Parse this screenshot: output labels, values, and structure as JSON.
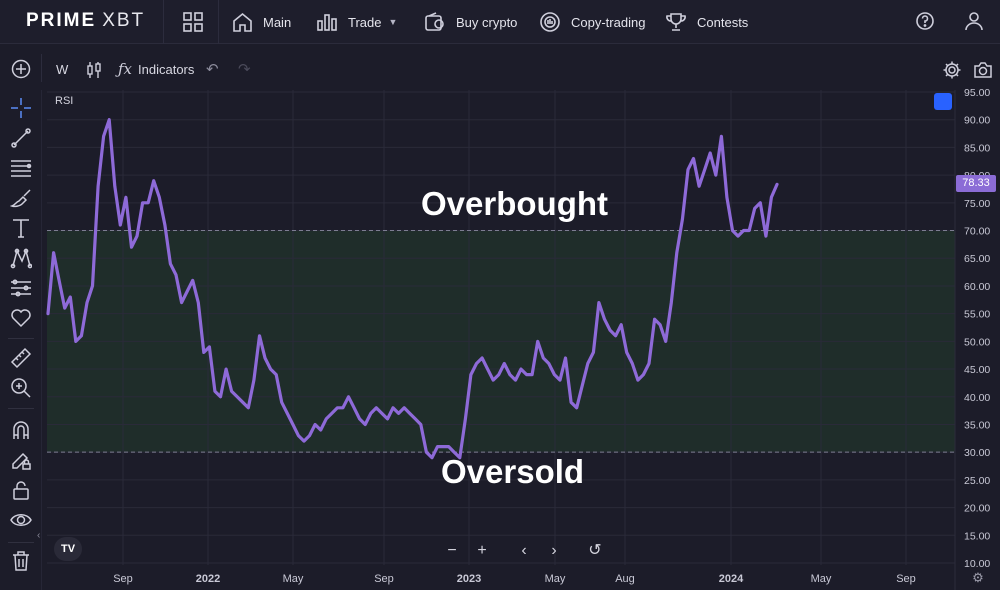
{
  "header": {
    "logo_bold": "PRIME",
    "logo_light": "XBT",
    "nav": [
      {
        "label": "Main",
        "icon": "home-icon"
      },
      {
        "label": "Trade",
        "icon": "bar-chart-icon"
      },
      {
        "label": "Buy crypto",
        "icon": "wallet-icon"
      },
      {
        "label": "Copy-trading",
        "icon": "copy-trading-icon"
      },
      {
        "label": "Contests",
        "icon": "trophy-icon"
      }
    ],
    "right_icons": [
      "help-icon",
      "user-icon"
    ]
  },
  "toolbar": {
    "interval": "W",
    "indicators_label": "Indicators"
  },
  "sidebar_tools": [
    "crosshair-icon",
    "trend-line-icon",
    "fib-icon",
    "brush-icon",
    "text-icon",
    "pattern-icon",
    "forecast-icon",
    "heart-icon",
    "ruler-icon",
    "zoom-in-icon",
    "magnet-icon",
    "lock-drawing-icon",
    "lock-icon",
    "eye-icon",
    "trash-icon"
  ],
  "chart": {
    "indicator_label": "RSI",
    "annotation_overbought": "Overbought",
    "annotation_oversold": "Oversold",
    "current_value_label": "78.33"
  },
  "chart_data": {
    "type": "line",
    "ylim": [
      10,
      95
    ],
    "y_ticks": [
      "95.00",
      "90.00",
      "85.00",
      "80.00",
      "75.00",
      "70.00",
      "65.00",
      "60.00",
      "55.00",
      "50.00",
      "45.00",
      "40.00",
      "35.00",
      "30.00",
      "25.00",
      "20.00",
      "15.00",
      "10.00"
    ],
    "x_ticks": [
      "Sep",
      "2022",
      "May",
      "Sep",
      "2023",
      "May",
      "Aug",
      "2024",
      "May",
      "Sep"
    ],
    "bands": {
      "upper": 70,
      "lower": 30
    },
    "current_value": 78.33,
    "series": [
      {
        "color": "#8e6ad8",
        "values": [
          55,
          66,
          61,
          56,
          58,
          50,
          51,
          57,
          60,
          78,
          87,
          90,
          78,
          71,
          76,
          67,
          69,
          75,
          75,
          79,
          76,
          71,
          64,
          62,
          57,
          59,
          61,
          57,
          48,
          49,
          41,
          40,
          45,
          41,
          40,
          39,
          38,
          43,
          51,
          47,
          45,
          44,
          39,
          37,
          35,
          33,
          32,
          33,
          35,
          34,
          36,
          37,
          38,
          38,
          40,
          38,
          36,
          35,
          37,
          38,
          37,
          36,
          38,
          37,
          38,
          37,
          36,
          35,
          30,
          29,
          31,
          31,
          31,
          30,
          29,
          36,
          44,
          46,
          47,
          45,
          43,
          44,
          46,
          44,
          43,
          45,
          44,
          44,
          50,
          47,
          46,
          44,
          43,
          47,
          39,
          38,
          42,
          46,
          48,
          57,
          54,
          52,
          51,
          53,
          48,
          46,
          43,
          44,
          46,
          54,
          53,
          50,
          57,
          66,
          72,
          81,
          83,
          78,
          81,
          84,
          80,
          87,
          76,
          70,
          69,
          70,
          70,
          74,
          75,
          69,
          76,
          78.33
        ]
      }
    ]
  }
}
